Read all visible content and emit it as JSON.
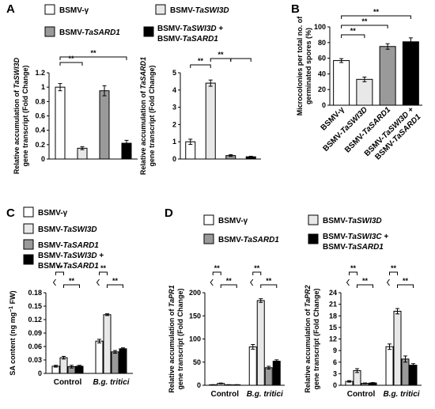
{
  "panels": {
    "A": "A",
    "B": "B",
    "C": "C",
    "D": "D"
  },
  "legend_labels": {
    "bsmv": [
      "BSMV-",
      "γ",
      ""
    ],
    "taswi3d": [
      "BSMV-",
      "TaSWI3D",
      ""
    ],
    "tasard1": [
      "BSMV-",
      "TaSARD1",
      ""
    ],
    "combo": [
      "BSMV-",
      "TaSWI3D",
      " +"
    ],
    "combo2": [
      "BSMV-",
      "TaSARD1",
      ""
    ],
    "combo_d": [
      "BSMV-",
      "TaSWI3C",
      " +"
    ]
  },
  "colors": {
    "bsmv": "#ffffff",
    "taswi3d": "#e8e8e8",
    "tasard1": "#9a9a9a",
    "combo": "#000000"
  },
  "sig": "**",
  "chart_data": [
    {
      "id": "A1",
      "type": "bar",
      "ylabel": [
        "Relative accumulation of ",
        "TaSWI3D",
        "",
        "gene transcript (Fold Change)"
      ],
      "ylim": [
        0,
        1.2
      ],
      "yticks": [
        "0",
        "0.2",
        "0.4",
        "0.6",
        "0.8",
        "1",
        "1.2"
      ],
      "values": [
        1.0,
        0.15,
        0.95,
        0.22
      ],
      "errors": [
        0.05,
        0.02,
        0.07,
        0.04
      ]
    },
    {
      "id": "A2",
      "type": "bar",
      "ylabel": [
        "Relative accumulation of ",
        "TaSARD1",
        "",
        "gene transcript (Fold Change)"
      ],
      "ylim": [
        0,
        5
      ],
      "yticks": [
        "0",
        "1",
        "2",
        "3",
        "4",
        "5"
      ],
      "values": [
        1.0,
        4.4,
        0.2,
        0.13
      ],
      "errors": [
        0.15,
        0.18,
        0.05,
        0.03
      ]
    },
    {
      "id": "B",
      "type": "bar",
      "ylabel": [
        "Microcolonies per total no. of",
        "",
        "",
        "germinated spores (%)"
      ],
      "ylim": [
        0,
        100
      ],
      "yticks": [
        "0",
        "20",
        "40",
        "60",
        "80",
        "100"
      ],
      "categories": [
        [
          "BSMV-γ"
        ],
        [
          "BSMV-TaSWI3D"
        ],
        [
          "BSMV-TaSARD1"
        ],
        [
          "BSMV-TaSWI3D +",
          "BSMV-TaSARD1"
        ]
      ],
      "values": [
        57,
        33,
        75,
        81
      ],
      "errors": [
        2.5,
        3,
        3.5,
        5
      ]
    },
    {
      "id": "C",
      "type": "bar",
      "ylabel": [
        "SA content (ng mg",
        "−1",
        " FW)",
        ""
      ],
      "ylim": [
        0,
        0.18
      ],
      "yticks": [
        "0",
        "0.03",
        "0.06",
        "0.09",
        "0.12",
        "0.15",
        "0.18"
      ],
      "categories": [
        "Control",
        "B.g. tritici"
      ],
      "series": [
        [
          0.016,
          0.072
        ],
        [
          0.035,
          0.131
        ],
        [
          0.015,
          0.048
        ],
        [
          0.016,
          0.055
        ]
      ],
      "errors": [
        [
          0.002,
          0.004
        ],
        [
          0.003,
          0.002
        ],
        [
          0.003,
          0.003
        ],
        [
          0.002,
          0.002
        ]
      ]
    },
    {
      "id": "D1",
      "type": "bar",
      "ylabel": [
        "Relative accumulation of ",
        "TaPR1",
        "",
        "gene transcript (Fold Change)"
      ],
      "ylim": [
        0,
        200
      ],
      "yticks": [
        "0",
        "50",
        "100",
        "150",
        "200"
      ],
      "categories": [
        "Control",
        "B.g. tritici"
      ],
      "series": [
        [
          1,
          83
        ],
        [
          4,
          183
        ],
        [
          1,
          38
        ],
        [
          1,
          52
        ]
      ],
      "errors": [
        [
          0.3,
          5
        ],
        [
          0.8,
          4
        ],
        [
          0.3,
          3
        ],
        [
          0.3,
          3
        ]
      ]
    },
    {
      "id": "D2",
      "type": "bar",
      "ylabel": [
        "Relative accumulation of ",
        "TaPR2",
        "",
        "gene transcript (Fold Change)"
      ],
      "ylim": [
        0,
        24
      ],
      "yticks": [
        "0",
        "3",
        "6",
        "9",
        "12",
        "15",
        "18",
        "21",
        "24"
      ],
      "categories": [
        "Control",
        "B.g. tritici"
      ],
      "series": [
        [
          1,
          10
        ],
        [
          3.8,
          19.2
        ],
        [
          0.5,
          6.8
        ],
        [
          0.6,
          5.2
        ]
      ],
      "errors": [
        [
          0.2,
          0.7
        ],
        [
          0.5,
          0.7
        ],
        [
          0.1,
          0.8
        ],
        [
          0.1,
          0.4
        ]
      ]
    }
  ]
}
